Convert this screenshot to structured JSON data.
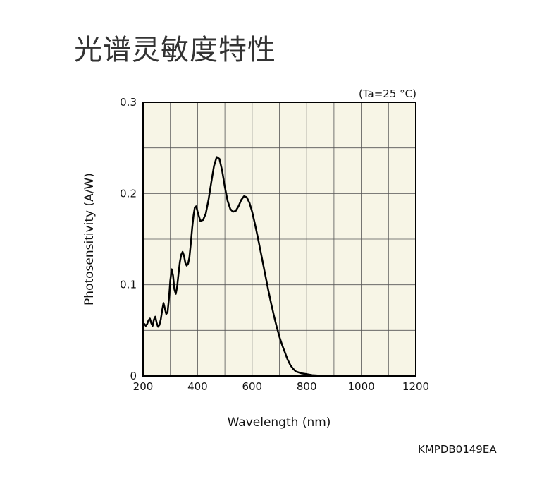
{
  "page": {
    "title": "光谱灵敏度特性",
    "condition": "(Ta=25 °C)",
    "doc_code": "KMPDB0149EA"
  },
  "chart_data": {
    "type": "line",
    "title": "光谱灵敏度特性",
    "xlabel": "Wavelength (nm)",
    "ylabel": "Photosensitivity (A/W)",
    "xlim": [
      200,
      1200
    ],
    "ylim": [
      0,
      0.3
    ],
    "x_ticks": [
      200,
      400,
      600,
      800,
      1000,
      1200
    ],
    "y_ticks": [
      0,
      0.1,
      0.2,
      0.3
    ],
    "x_tick_labels": [
      "200",
      "400",
      "600",
      "800",
      "1000",
      "1200"
    ],
    "y_tick_labels": [
      "0",
      "0.1",
      "0.2",
      "0.3"
    ],
    "grid": true,
    "plot_background": "#f7f5e6",
    "line_color": "#000000",
    "series": [
      {
        "x": [
          200,
          205,
          210,
          215,
          220,
          225,
          230,
          235,
          240,
          245,
          250,
          255,
          260,
          265,
          270,
          275,
          280,
          285,
          290,
          295,
          300,
          305,
          310,
          315,
          320,
          325,
          330,
          335,
          340,
          345,
          350,
          355,
          360,
          365,
          370,
          375,
          380,
          385,
          390,
          395,
          400,
          410,
          420,
          430,
          440,
          450,
          460,
          470,
          480,
          490,
          500,
          510,
          520,
          530,
          540,
          550,
          560,
          570,
          580,
          590,
          600,
          610,
          620,
          630,
          640,
          650,
          660,
          670,
          680,
          690,
          700,
          710,
          720,
          730,
          740,
          750,
          760,
          780,
          800,
          820,
          840,
          860,
          880,
          900,
          920,
          940,
          960,
          980,
          1000,
          1020,
          1040,
          1060,
          1080,
          1100,
          1120,
          1140,
          1160,
          1180,
          1200
        ],
        "y": [
          0.055,
          0.057,
          0.055,
          0.057,
          0.061,
          0.063,
          0.058,
          0.055,
          0.062,
          0.065,
          0.058,
          0.054,
          0.056,
          0.062,
          0.072,
          0.08,
          0.074,
          0.068,
          0.07,
          0.085,
          0.105,
          0.117,
          0.11,
          0.095,
          0.09,
          0.098,
          0.112,
          0.125,
          0.133,
          0.136,
          0.132,
          0.124,
          0.121,
          0.123,
          0.13,
          0.145,
          0.162,
          0.176,
          0.185,
          0.186,
          0.18,
          0.17,
          0.171,
          0.178,
          0.193,
          0.212,
          0.23,
          0.24,
          0.238,
          0.225,
          0.207,
          0.192,
          0.183,
          0.18,
          0.181,
          0.186,
          0.193,
          0.197,
          0.196,
          0.19,
          0.18,
          0.167,
          0.153,
          0.138,
          0.123,
          0.108,
          0.093,
          0.079,
          0.066,
          0.054,
          0.043,
          0.034,
          0.026,
          0.018,
          0.012,
          0.008,
          0.005,
          0.003,
          0.002,
          0.001,
          0.0006,
          0.0004,
          0.0002,
          0.0001,
          0.0,
          0.0,
          0.0,
          0.0,
          0.0,
          0.0,
          0.0,
          0.0,
          0.0,
          0.0,
          0.0,
          0.0,
          0.0,
          0.0,
          0.0
        ]
      }
    ]
  }
}
